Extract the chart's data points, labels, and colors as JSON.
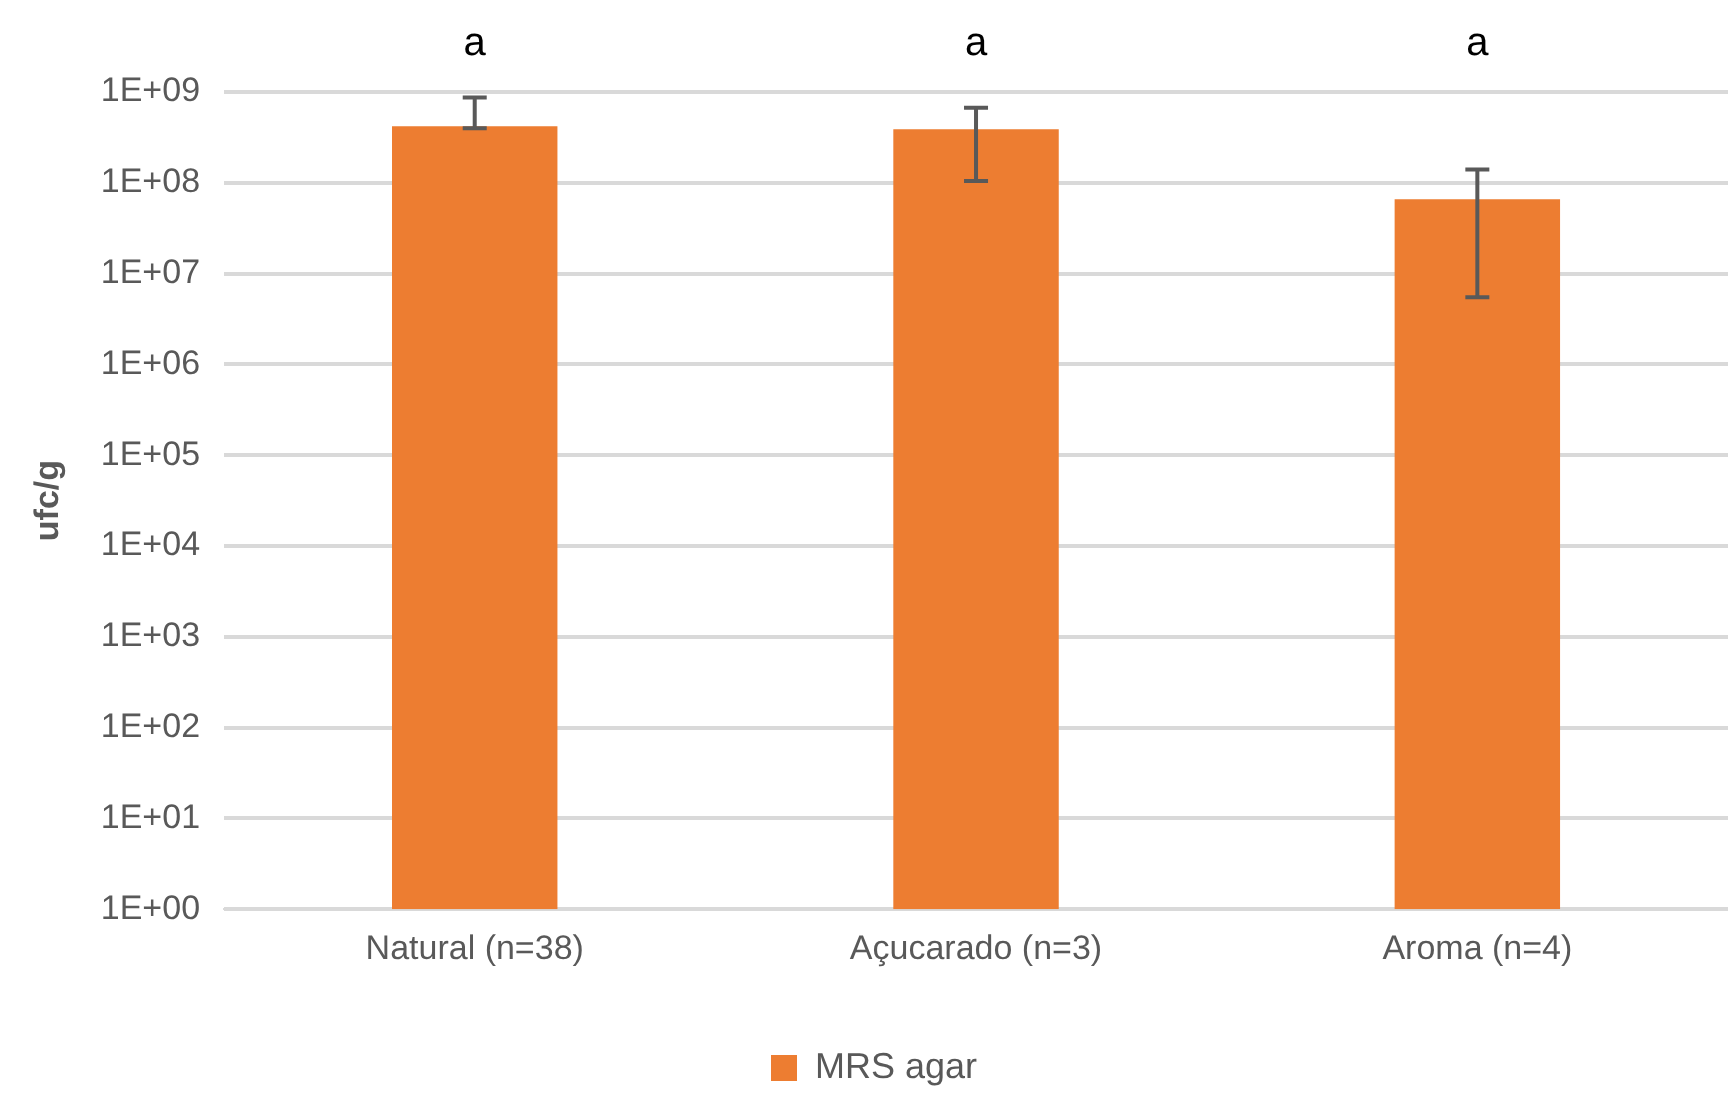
{
  "chart_data": {
    "type": "bar",
    "ylabel": "ufc/g",
    "categories": [
      "Natural (n=38)",
      "Açucarado (n=3)",
      "Aroma (n=4)"
    ],
    "series": [
      {
        "name": "MRS agar",
        "color": "#ed7d31",
        "values": [
          420000000,
          390000000,
          66000000
        ],
        "errors": [
          [
            400000000,
            870000000
          ],
          [
            105000000,
            670000000
          ],
          [
            5500000,
            140000000
          ]
        ]
      }
    ],
    "log": "y",
    "ylim": [
      1,
      1000000000
    ],
    "yticks": [
      {
        "value": 1,
        "label": "1E+00"
      },
      {
        "value": 10,
        "label": "1E+01"
      },
      {
        "value": 100,
        "label": "1E+02"
      },
      {
        "value": 1000,
        "label": "1E+03"
      },
      {
        "value": 10000,
        "label": "1E+04"
      },
      {
        "value": 100000,
        "label": "1E+05"
      },
      {
        "value": 1000000,
        "label": "1E+06"
      },
      {
        "value": 10000000,
        "label": "1E+07"
      },
      {
        "value": 100000000,
        "label": "1E+08"
      },
      {
        "value": 1000000000,
        "label": "1E+09"
      }
    ],
    "annotations": [
      "a",
      "a",
      "a"
    ],
    "grid": "y",
    "legend": "bottom"
  }
}
